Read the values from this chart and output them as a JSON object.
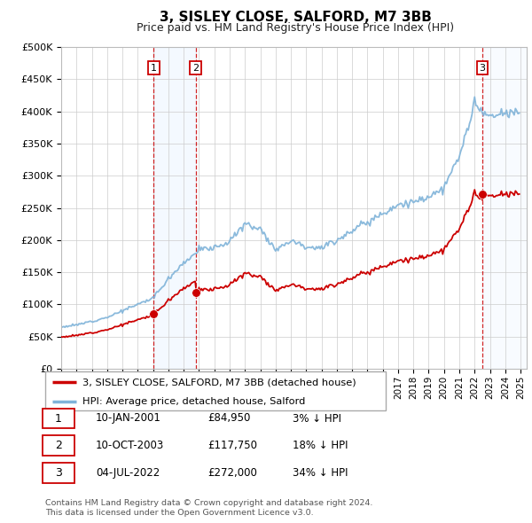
{
  "title": "3, SISLEY CLOSE, SALFORD, M7 3BB",
  "subtitle": "Price paid vs. HM Land Registry's House Price Index (HPI)",
  "xlim_start": 1995.0,
  "xlim_end": 2025.0,
  "ylim_min": 0,
  "ylim_max": 500000,
  "yticks": [
    0,
    50000,
    100000,
    150000,
    200000,
    250000,
    300000,
    350000,
    400000,
    450000,
    500000
  ],
  "ytick_labels": [
    "£0",
    "£50K",
    "£100K",
    "£150K",
    "£200K",
    "£250K",
    "£300K",
    "£350K",
    "£400K",
    "£450K",
    "£500K"
  ],
  "sale_dates": [
    2001.036,
    2003.786,
    2022.504
  ],
  "sale_prices": [
    84950,
    117750,
    272000
  ],
  "sale_labels": [
    "1",
    "2",
    "3"
  ],
  "hpi_line_color": "#7fb3d9",
  "price_line_color": "#cc0000",
  "sale_marker_color": "#cc0000",
  "vline_color": "#cc0000",
  "shade_color": "#ddeeff",
  "legend_label_price": "3, SISLEY CLOSE, SALFORD, M7 3BB (detached house)",
  "legend_label_hpi": "HPI: Average price, detached house, Salford",
  "table_entries": [
    [
      "1",
      "10-JAN-2001",
      "£84,950",
      "3% ↓ HPI"
    ],
    [
      "2",
      "10-OCT-2003",
      "£117,750",
      "18% ↓ HPI"
    ],
    [
      "3",
      "04-JUL-2022",
      "£272,000",
      "34% ↓ HPI"
    ]
  ],
  "footnote": "Contains HM Land Registry data © Crown copyright and database right 2024.\nThis data is licensed under the Open Government Licence v3.0.",
  "background_color": "#ffffff",
  "grid_color": "#cccccc",
  "hpi_annual": {
    "1995": 65000,
    "1996": 68000,
    "1997": 74000,
    "1998": 80000,
    "1999": 90000,
    "2000": 100000,
    "2001": 110000,
    "2002": 140000,
    "2003": 165000,
    "2004": 185000,
    "2005": 188000,
    "2006": 198000,
    "2007": 225000,
    "2008": 218000,
    "2009": 185000,
    "2010": 200000,
    "2011": 190000,
    "2012": 188000,
    "2013": 200000,
    "2014": 215000,
    "2015": 228000,
    "2016": 242000,
    "2017": 255000,
    "2018": 258000,
    "2019": 268000,
    "2020": 280000,
    "2021": 330000,
    "2022": 410000,
    "2023": 390000,
    "2024": 395000,
    "2025": 400000
  }
}
